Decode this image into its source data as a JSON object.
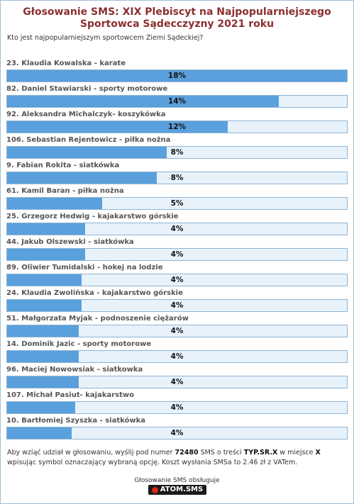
{
  "poll": {
    "title_line1": "Głosowanie SMS: XIX Plebiscyt na Najpopularniejszego",
    "title_line2": "Sportowca Sądecczyzny 2021 roku",
    "question": "Kto jest najpopularniejszym sportowcem Ziemi Sądeckiej?",
    "options": [
      {
        "label": "23. Klaudia Kowalska - karate",
        "percent_text": "18%",
        "fill": 1.0
      },
      {
        "label": "82. Daniel Stawiarski - sporty motorowe",
        "percent_text": "14%",
        "fill": 0.8
      },
      {
        "label": "92. Aleksandra Michalczyk- koszykówka",
        "percent_text": "12%",
        "fill": 0.65
      },
      {
        "label": "106. Sebastian Rejentowicz - piłka nożna",
        "percent_text": "8%",
        "fill": 0.47
      },
      {
        "label": "9. Fabian Rokita - siatkówka",
        "percent_text": "8%",
        "fill": 0.44
      },
      {
        "label": "61. Kamil Baran - piłka nożna",
        "percent_text": "5%",
        "fill": 0.28
      },
      {
        "label": "25. Grzegorz Hedwig - kajakarstwo górskie",
        "percent_text": "4%",
        "fill": 0.23
      },
      {
        "label": "44. Jakub Olszewski - siatkówka",
        "percent_text": "4%",
        "fill": 0.23
      },
      {
        "label": "89. Oliwier Tumidalski - hokej na lodzie",
        "percent_text": "4%",
        "fill": 0.22
      },
      {
        "label": "24. Klaudia Zwolińska - kajakarstwo górskie",
        "percent_text": "4%",
        "fill": 0.22
      },
      {
        "label": "51. Małgorzata Myjak - podnoszenie ciężarów",
        "percent_text": "4%",
        "fill": 0.21
      },
      {
        "label": "14. Dominik Jazic - sporty motorowe",
        "percent_text": "4%",
        "fill": 0.21
      },
      {
        "label": "96. Maciej Nowowsiak - siatkowka",
        "percent_text": "4%",
        "fill": 0.21
      },
      {
        "label": "107. Michał Pasiut- kajakarstwo",
        "percent_text": "4%",
        "fill": 0.2
      },
      {
        "label": "10. Bartłomiej Szyszka - siatkówka",
        "percent_text": "4%",
        "fill": 0.19
      }
    ]
  },
  "footer": {
    "text_before_number": "Aby wziąć udział w głosowaniu, wyślij pod numer ",
    "number": "72480",
    "text_before_code": " SMS o treści ",
    "code": "TYP.SR.X",
    "text_before_x": " w miejsce ",
    "x": "X",
    "text_after": " wpisując symbol oznaczający wybraną opcję. Koszt wysłania SMSa to 2.46 zł z VATem."
  },
  "provider": {
    "label": "Głosowanie SMS obsługuje",
    "logo_text": "ATOM.SMS"
  },
  "colors": {
    "title": "#8b2f2f",
    "bar_fill": "#5aa0dc",
    "bar_track": "#e8f2fb",
    "border": "#8fb4d3"
  }
}
